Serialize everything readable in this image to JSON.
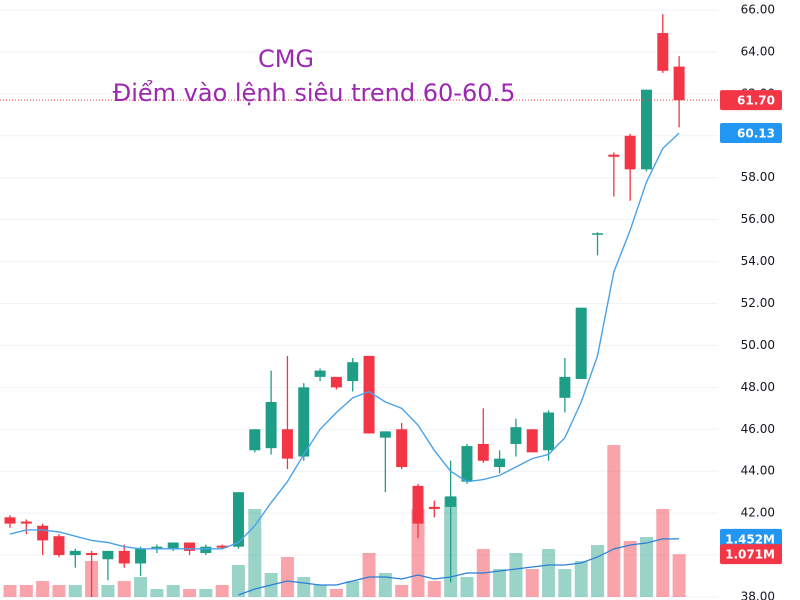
{
  "chart_data": {
    "type": "candlestick",
    "annotations": [
      "CMG",
      "Điểm vào lệnh siêu trend 60-60.5"
    ],
    "annotation_color": "#9c27b0",
    "up_color": "#1e9e86",
    "down_color": "#f23645",
    "ma_color": "#4aa3e8",
    "volume_ma_color": "#2a7fd6",
    "grid": true,
    "ylim": [
      38,
      66
    ],
    "yticks": [
      {
        "value": 38,
        "label": "38.00"
      },
      {
        "value": 40,
        "label": "40.00"
      },
      {
        "value": 42,
        "label": "42.00"
      },
      {
        "value": 44,
        "label": "44.00"
      },
      {
        "value": 46,
        "label": "46.00"
      },
      {
        "value": 48,
        "label": "48.00"
      },
      {
        "value": 50,
        "label": "50.00"
      },
      {
        "value": 52,
        "label": "52.00"
      },
      {
        "value": 54,
        "label": "54.00"
      },
      {
        "value": 56,
        "label": "56.00"
      },
      {
        "value": 58,
        "label": "58.00"
      },
      {
        "value": 60,
        "label": "60.00"
      },
      {
        "value": 62,
        "label": "62.00"
      },
      {
        "value": 64,
        "label": "64.00"
      },
      {
        "value": 66,
        "label": "66.00"
      }
    ],
    "volume_lim": [
      0,
      4
    ],
    "open": [
      41.8,
      41.6,
      41.4,
      40.9,
      40.0,
      40.1,
      39.8,
      40.2,
      39.6,
      40.3,
      40.3,
      40.6,
      40.1,
      40.45,
      40.4,
      45.0,
      45.1,
      46.0,
      44.7,
      48.5,
      48.5,
      48.3,
      49.5,
      45.6,
      46.0,
      43.3,
      42.3,
      42.3,
      43.5,
      45.3,
      44.2,
      45.3,
      46.0,
      45.0,
      47.5,
      48.4,
      55.3,
      59.1,
      60.0,
      58.4,
      64.9,
      63.3
    ],
    "high": [
      41.9,
      41.7,
      41.5,
      41.0,
      40.3,
      40.2,
      40.2,
      40.5,
      40.4,
      40.5,
      40.6,
      40.6,
      40.5,
      40.5,
      43.0,
      46.0,
      48.8,
      49.5,
      48.2,
      48.9,
      48.5,
      49.4,
      49.5,
      45.9,
      46.3,
      43.4,
      42.6,
      44.5,
      45.3,
      47.0,
      45.0,
      46.5,
      46.0,
      46.9,
      49.4,
      51.8,
      55.4,
      59.2,
      60.1,
      62.2,
      65.8,
      63.8
    ],
    "low": [
      41.3,
      41.0,
      40.0,
      39.9,
      39.4,
      38.0,
      38.8,
      39.4,
      39.0,
      40.1,
      40.2,
      40.0,
      40.0,
      40.3,
      40.3,
      44.9,
      44.8,
      44.1,
      44.5,
      48.3,
      47.9,
      47.8,
      45.8,
      43.0,
      44.1,
      40.8,
      41.8,
      38.7,
      43.4,
      44.4,
      43.9,
      44.7,
      44.9,
      44.5,
      46.8,
      48.4,
      54.3,
      57.1,
      56.9,
      58.3,
      63.0,
      60.4
    ],
    "close": [
      41.5,
      41.5,
      40.7,
      40.0,
      40.2,
      40.0,
      40.2,
      39.6,
      40.3,
      40.4,
      40.6,
      40.2,
      40.4,
      40.35,
      43.0,
      46.0,
      47.3,
      44.6,
      48.0,
      48.8,
      48.0,
      49.2,
      45.8,
      45.9,
      44.2,
      41.5,
      42.2,
      42.8,
      45.2,
      44.5,
      44.6,
      46.1,
      44.9,
      46.8,
      48.5,
      51.8,
      55.35,
      59.0,
      58.4,
      62.2,
      63.1,
      61.7
    ],
    "volume": [
      0.3,
      0.3,
      0.4,
      0.3,
      0.3,
      0.9,
      0.3,
      0.4,
      0.5,
      0.2,
      0.3,
      0.2,
      0.2,
      0.3,
      0.8,
      2.2,
      0.6,
      1.0,
      0.5,
      0.3,
      0.2,
      0.4,
      1.1,
      0.6,
      0.3,
      2.2,
      0.4,
      2.5,
      0.5,
      1.2,
      0.7,
      1.1,
      0.7,
      1.2,
      0.7,
      0.9,
      1.3,
      3.8,
      1.4,
      1.5,
      2.2,
      1.071
    ],
    "ma": [
      41.0,
      41.2,
      41.2,
      41.1,
      40.9,
      40.7,
      40.6,
      40.4,
      40.3,
      40.3,
      40.3,
      40.3,
      40.3,
      40.3,
      40.6,
      41.4,
      42.5,
      43.5,
      44.8,
      46.0,
      46.8,
      47.5,
      47.8,
      47.3,
      47.0,
      46.2,
      45.0,
      44.0,
      43.5,
      43.6,
      43.8,
      44.2,
      44.6,
      44.8,
      45.6,
      47.3,
      49.5,
      53.5,
      55.5,
      57.8,
      59.4,
      60.13
    ],
    "volume_ma": [
      null,
      null,
      null,
      null,
      null,
      null,
      null,
      null,
      null,
      null,
      null,
      null,
      null,
      null,
      0.05,
      0.2,
      0.3,
      0.4,
      0.35,
      0.3,
      0.3,
      0.4,
      0.5,
      0.5,
      0.45,
      0.55,
      0.45,
      0.5,
      0.6,
      0.6,
      0.65,
      0.7,
      0.75,
      0.8,
      0.8,
      0.85,
      1.0,
      1.2,
      1.3,
      1.35,
      1.452,
      1.452
    ],
    "price_tags": [
      {
        "value": 61.7,
        "label": "61.70",
        "color": "#f23645"
      },
      {
        "value": 60.13,
        "label": "60.13",
        "color": "#2196f3"
      }
    ],
    "volume_tags": [
      {
        "value": 1.452,
        "label": "1.452M",
        "color": "#2196f3"
      },
      {
        "value": 1.071,
        "label": "1.071M",
        "color": "#f23645"
      }
    ]
  }
}
